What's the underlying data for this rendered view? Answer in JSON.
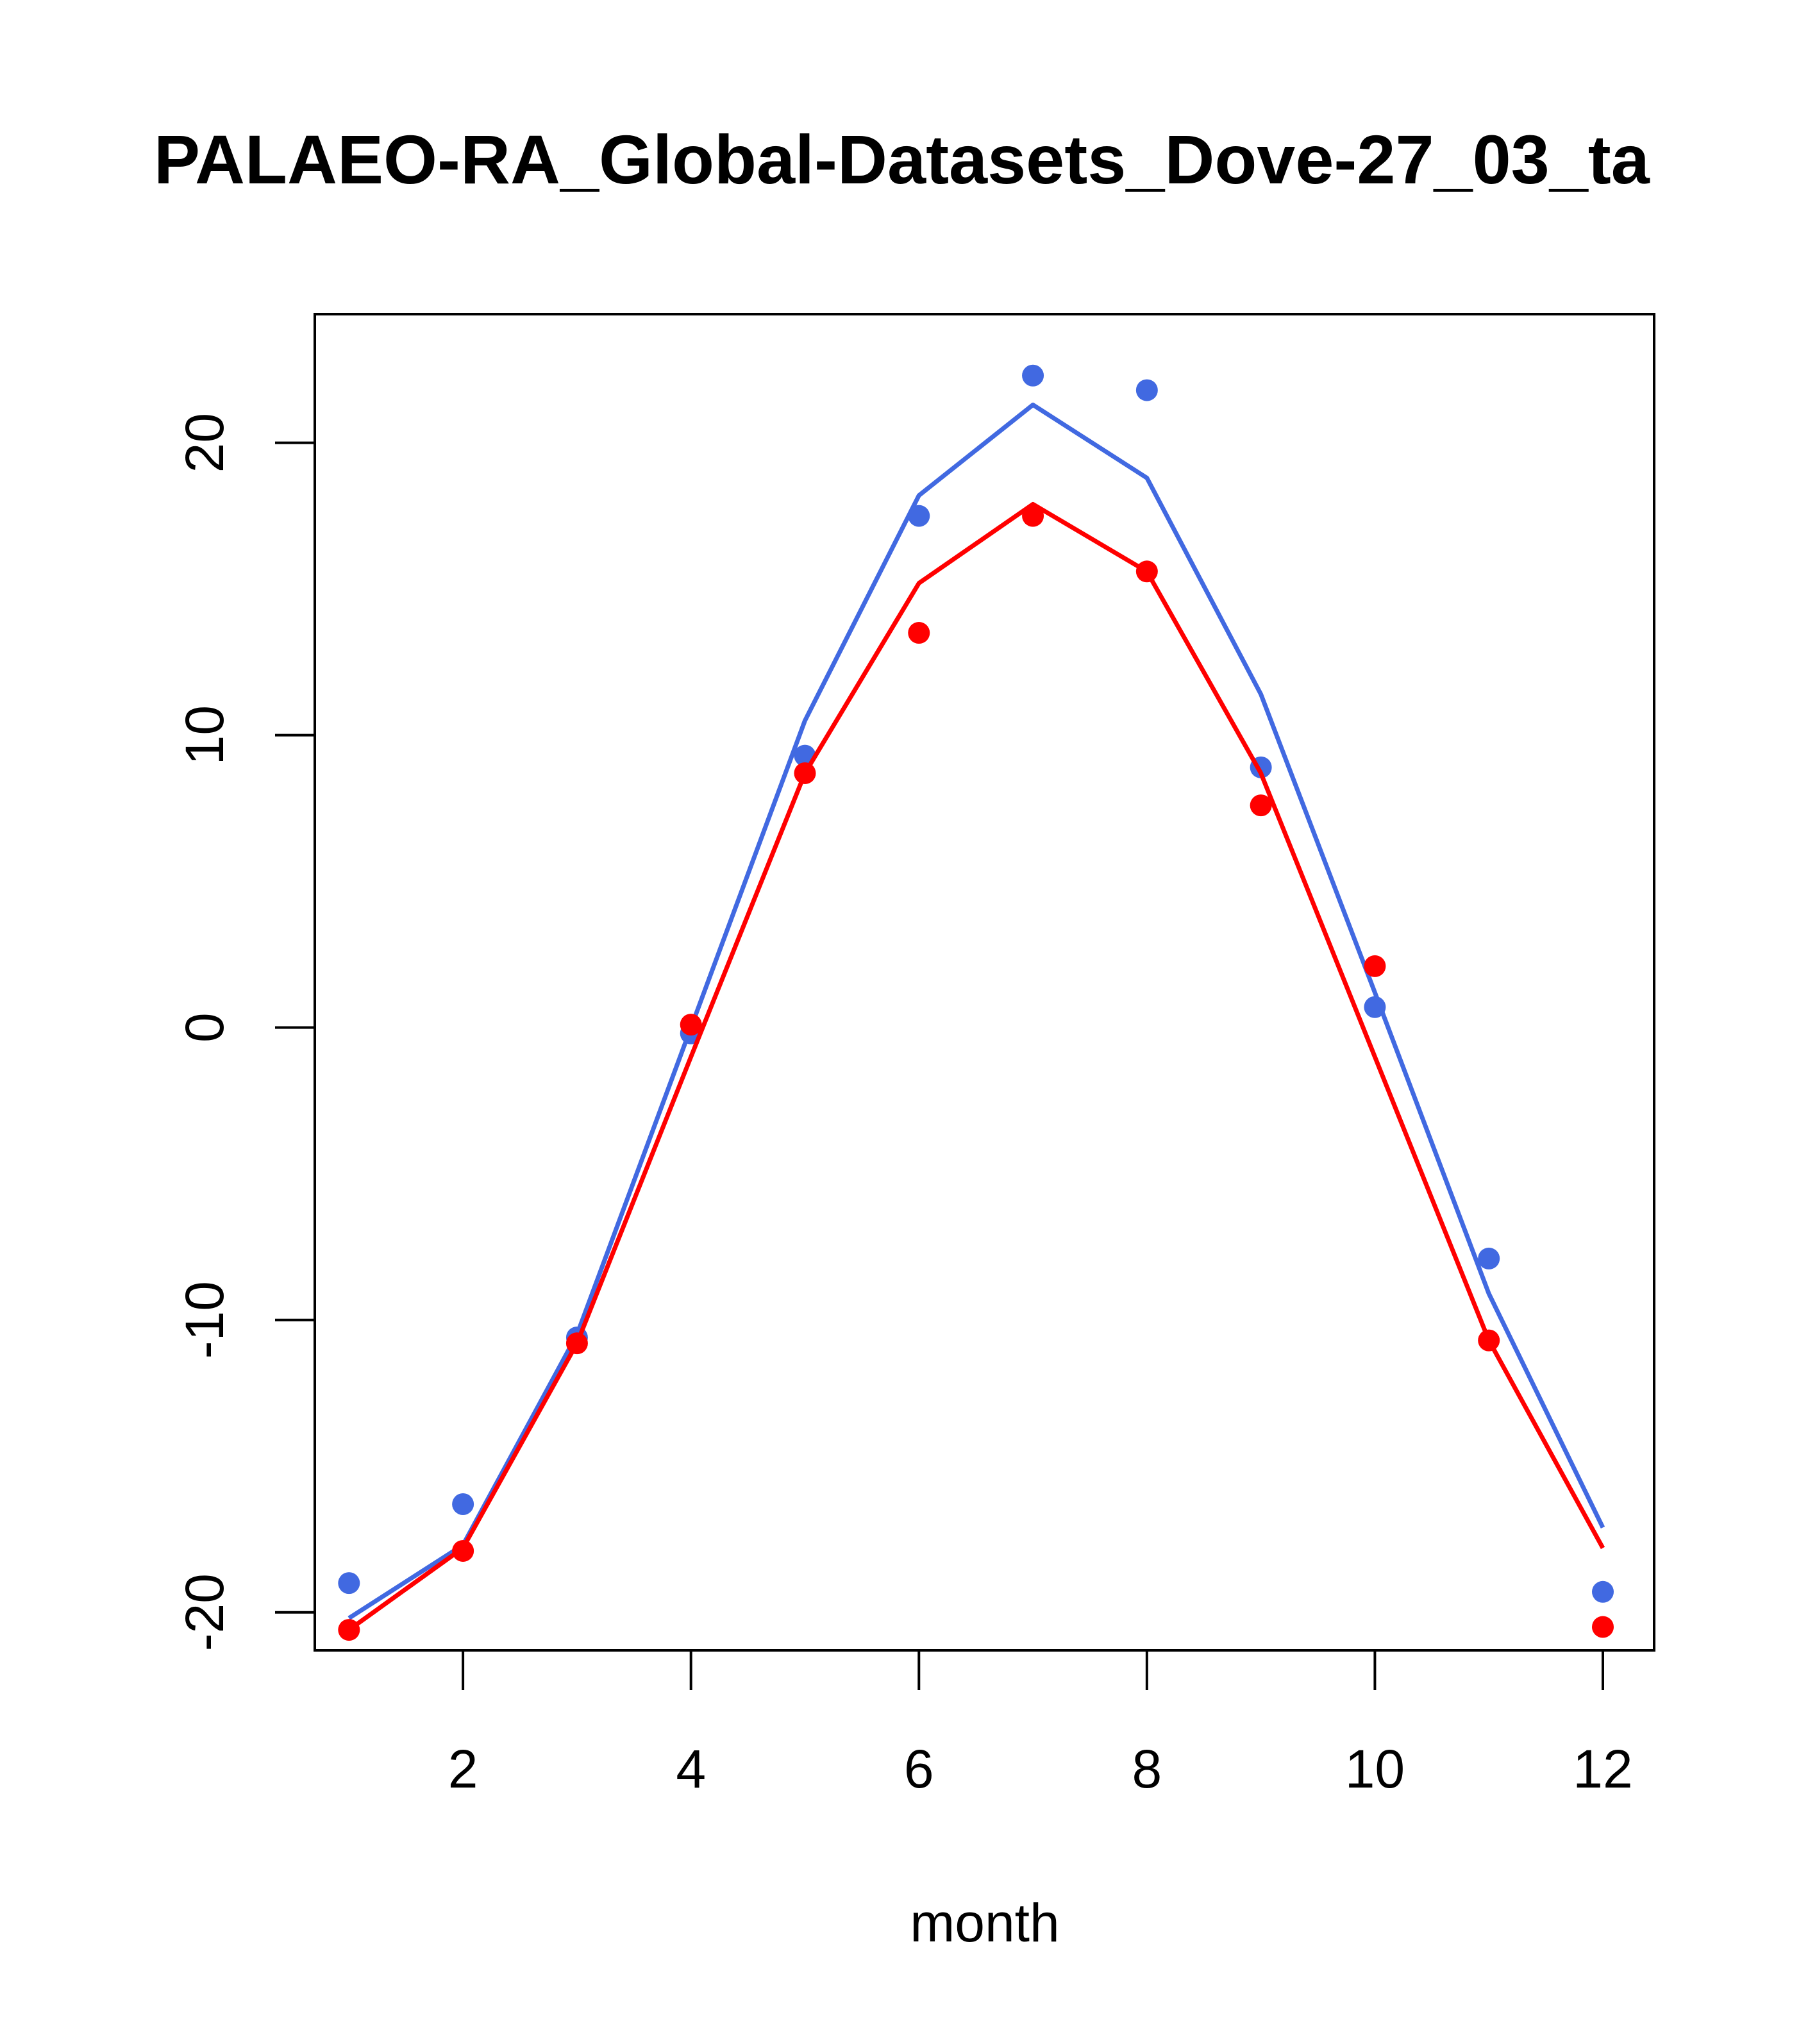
{
  "chart_data": {
    "type": "line",
    "title": "PALAEO-RA_Global-Datasets_Dove-27_03_ta",
    "xlabel": "month",
    "ylabel": "",
    "xlim": [
      0.7,
      12.45
    ],
    "ylim": [
      -21.3,
      24.4
    ],
    "xticks": [
      2,
      4,
      6,
      8,
      10,
      12
    ],
    "yticks": [
      -20,
      -10,
      0,
      10,
      20
    ],
    "xtick_labels": [
      "2",
      "4",
      "6",
      "8",
      "10",
      "12"
    ],
    "ytick_labels": [
      "-20",
      "-10",
      "0",
      "10",
      "20"
    ],
    "grid": false,
    "legend": "none",
    "series": [
      {
        "color": "#4169E1",
        "x": [
          1,
          2,
          3,
          4,
          5,
          6,
          7,
          8,
          9,
          10,
          11,
          12
        ],
        "line": [
          -20.2,
          -17.7,
          -10.5,
          0.0,
          10.5,
          18.2,
          21.3,
          18.8,
          11.4,
          1.2,
          -9.1,
          -17.1
        ],
        "points": [
          -19.0,
          -16.3,
          -10.6,
          -0.2,
          9.3,
          17.5,
          22.3,
          21.8,
          8.9,
          0.7,
          -7.9,
          -19.3
        ]
      },
      {
        "color": "#FF0000",
        "x": [
          1,
          2,
          3,
          4,
          5,
          6,
          7,
          8,
          9,
          10,
          11,
          12
        ],
        "line": [
          -20.6,
          -17.8,
          -10.8,
          -1.0,
          8.7,
          15.2,
          17.9,
          15.6,
          8.7,
          -1.0,
          -10.7,
          -17.8
        ],
        "points": [
          -20.6,
          -17.9,
          -10.8,
          0.1,
          8.7,
          13.5,
          17.5,
          15.6,
          7.6,
          2.1,
          -10.7,
          -20.5
        ]
      }
    ]
  }
}
